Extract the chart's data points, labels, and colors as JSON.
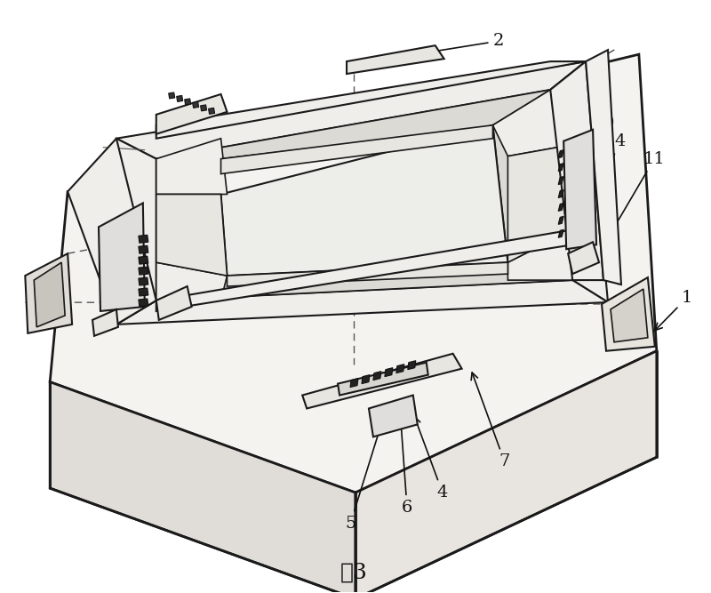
{
  "caption": "图3",
  "caption_fontsize": 18,
  "background_color": "#ffffff",
  "fig_width": 8.0,
  "fig_height": 6.67,
  "line_color": "#1a1a1a",
  "annotation_color": "#111111",
  "dashed_color": "#555555"
}
